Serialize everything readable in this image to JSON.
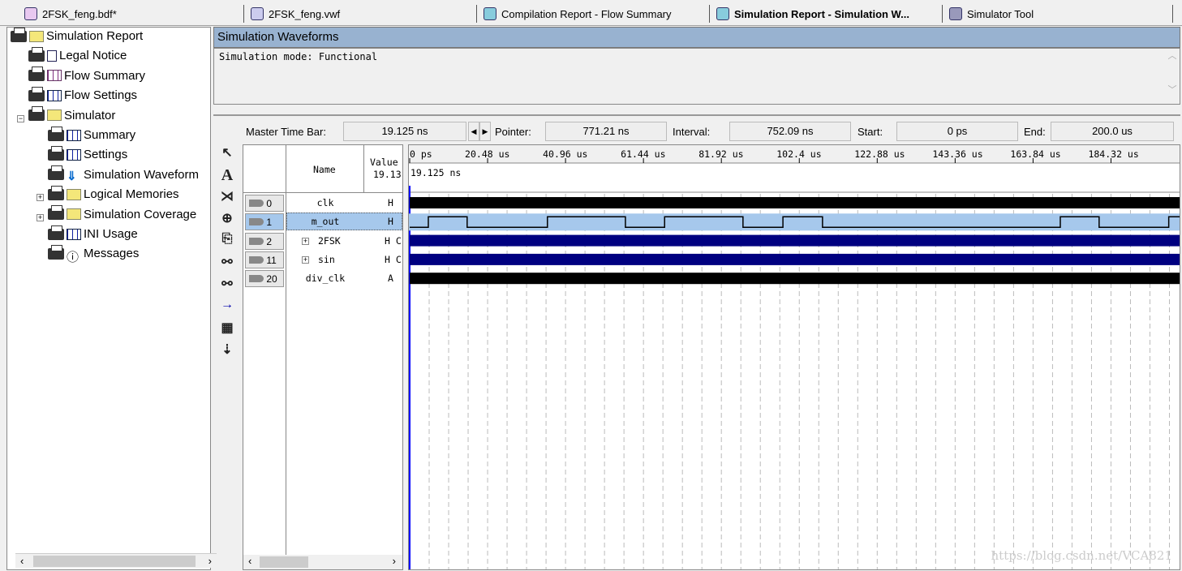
{
  "tabs": [
    {
      "label": "2FSK_feng.bdf*",
      "icon": "block-diagram-icon"
    },
    {
      "label": "2FSK_feng.vwf",
      "icon": "waveform-file-icon"
    },
    {
      "label": "Compilation Report - Flow Summary",
      "icon": "report-icon"
    },
    {
      "label": "Simulation Report - Simulation W...",
      "icon": "report-icon",
      "active": true
    },
    {
      "label": "Simulator Tool",
      "icon": "simulator-icon"
    }
  ],
  "tree": [
    {
      "label": "Simulation Report",
      "icon": "folder-icon"
    },
    {
      "label": "Legal Notice",
      "icon": "document-icon"
    },
    {
      "label": "Flow Summary",
      "icon": "table-icon"
    },
    {
      "label": "Flow Settings",
      "icon": "table-icon"
    },
    {
      "label": "Simulator",
      "icon": "folder-icon",
      "expanded": true
    },
    {
      "label": "Summary",
      "icon": "table-icon"
    },
    {
      "label": "Settings",
      "icon": "table-icon"
    },
    {
      "label": "Simulation Waveform",
      "icon": "waveform-icon"
    },
    {
      "label": "Logical Memories",
      "icon": "folder-icon",
      "expandable": true
    },
    {
      "label": "Simulation Coverage",
      "icon": "folder-icon",
      "expandable": true
    },
    {
      "label": "INI Usage",
      "icon": "table-icon"
    },
    {
      "label": "Messages",
      "icon": "info-icon"
    }
  ],
  "panel": {
    "title": "Simulation Waveforms",
    "mode_text": "Simulation mode: Functional"
  },
  "timebar": {
    "master_label": "Master Time Bar:",
    "master_value": "19.125 ns",
    "pointer_label": "Pointer:",
    "pointer_value": "771.21 ns",
    "interval_label": "Interval:",
    "interval_value": "752.09 ns",
    "start_label": "Start:",
    "start_value": "0 ps",
    "end_label": "End:",
    "end_value": "200.0 us"
  },
  "columns": {
    "name": "Name",
    "value": "Value",
    "value_sub": "19.13"
  },
  "signals": [
    {
      "index": "0",
      "name": "clk",
      "value": "H",
      "type": "clock"
    },
    {
      "index": "1",
      "name": "m_out",
      "value": "H",
      "type": "digital",
      "selected": true,
      "transitions_us": [
        4.9,
        15.1,
        36.2,
        56.7,
        67.0,
        87.6,
        98.1,
        108.5,
        171.0,
        181.2,
        199.5
      ]
    },
    {
      "index": "2",
      "name": "2FSK",
      "value": "H C",
      "type": "bus",
      "expandable": true
    },
    {
      "index": "11",
      "name": "sin",
      "value": "H C",
      "type": "bus",
      "expandable": true
    },
    {
      "index": "20",
      "name": "div_clk",
      "value": "A",
      "type": "clock"
    }
  ],
  "axis": {
    "ticks": [
      "0 ps",
      "20.48 us",
      "40.96 us",
      "61.44 us",
      "81.92 us",
      "102.4 us",
      "122.88 us",
      "143.36 us",
      "163.84 us",
      "184.32 us"
    ],
    "cursor_label": "19.125 ns",
    "range_us": [
      0,
      200
    ]
  },
  "colors": {
    "bus": "#000080",
    "clock": "#000000",
    "selected": "#a6c8ec",
    "header": "#98b2d0",
    "cursor": "#0000ff"
  },
  "watermark": "https://blog.csdn.net/VCA821"
}
